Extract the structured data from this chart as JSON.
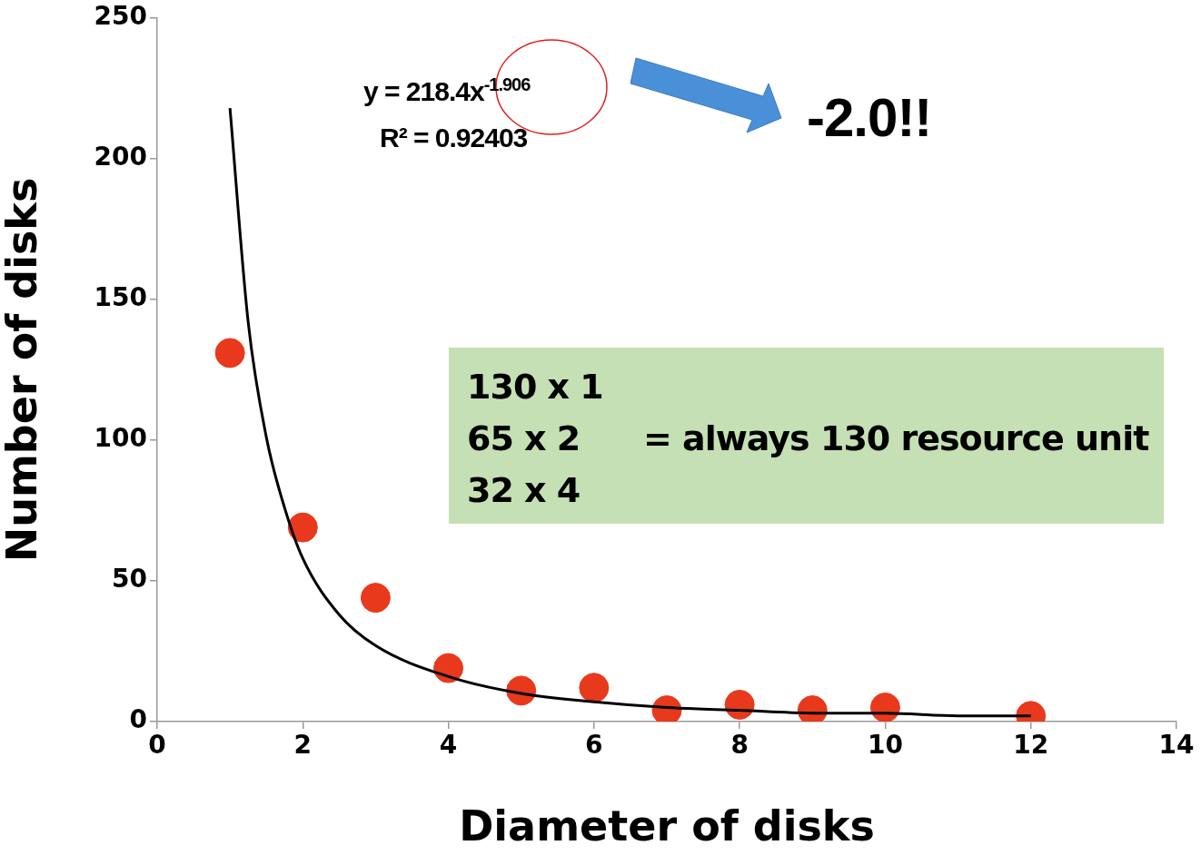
{
  "chart_data": {
    "type": "scatter",
    "xlabel": "Diameter of disks",
    "ylabel": "Number of disks",
    "xlim": [
      0,
      14
    ],
    "xticks": [
      0,
      2,
      4,
      6,
      8,
      10,
      12,
      14
    ],
    "ylim": [
      0,
      250
    ],
    "yticks": [
      0,
      50,
      100,
      150,
      200,
      250
    ],
    "grid": false,
    "legend": false,
    "marker": "circle",
    "series": [
      {
        "color": "#e8391d",
        "x": [
          1,
          2,
          3,
          4,
          5,
          6,
          7,
          8,
          9,
          10,
          12
        ],
        "values": [
          131,
          69,
          44,
          19,
          11,
          12,
          4,
          6,
          4,
          5,
          2
        ]
      },
      {
        "type": "line",
        "color": "#000000",
        "line_style": "solid",
        "marker": "none",
        "x": [
          1,
          1.25,
          1.5,
          1.75,
          2,
          2.5,
          3,
          4,
          5,
          6,
          7,
          8,
          9,
          10,
          11,
          12
        ],
        "values": [
          218,
          142,
          101,
          76,
          58,
          38,
          27,
          16,
          10,
          7,
          5,
          4,
          3,
          3,
          2,
          2
        ]
      }
    ],
    "annotations": [
      "y = 218.4x$^{-1.906}$",
      "R² = 0.92403",
      "-2.0!!",
      "130 x 1",
      "65 x 2",
      "32 x 4",
      "= always 130 resource unit"
    ]
  }
}
